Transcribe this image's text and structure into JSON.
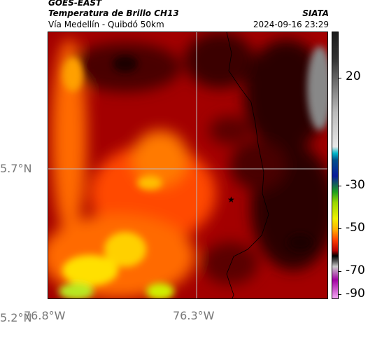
{
  "header": {
    "satellite": "GOES-EAST",
    "product": "Temperatura de Brillo CH13",
    "region": "Vía Medellín - Quibdó 50km",
    "agency": "SIATA",
    "timestamp": "2024-09-16 23:29"
  },
  "axes": {
    "lat_labels": [
      "5.7°N",
      "5.2°N"
    ],
    "lon_labels": [
      "76.8°W",
      "76.3°W"
    ]
  },
  "colorbar": {
    "labels": [
      "20",
      "-30",
      "-50",
      "-70",
      "-90"
    ]
  },
  "colors": {
    "colorbar_stops": [
      "#1a1a1a",
      "#bbbbbb",
      "#00b7c9",
      "#0a1a9a",
      "#1ea01e",
      "#f0f000",
      "#ff4000",
      "#000000",
      "#a200a2"
    ],
    "map_field": [
      "#2a0000",
      "#6b0000",
      "#b30000",
      "#e02000",
      "#ff5a00",
      "#ffa500",
      "#f0e000",
      "#a0e020"
    ]
  },
  "marker": {
    "symbol": "★"
  }
}
